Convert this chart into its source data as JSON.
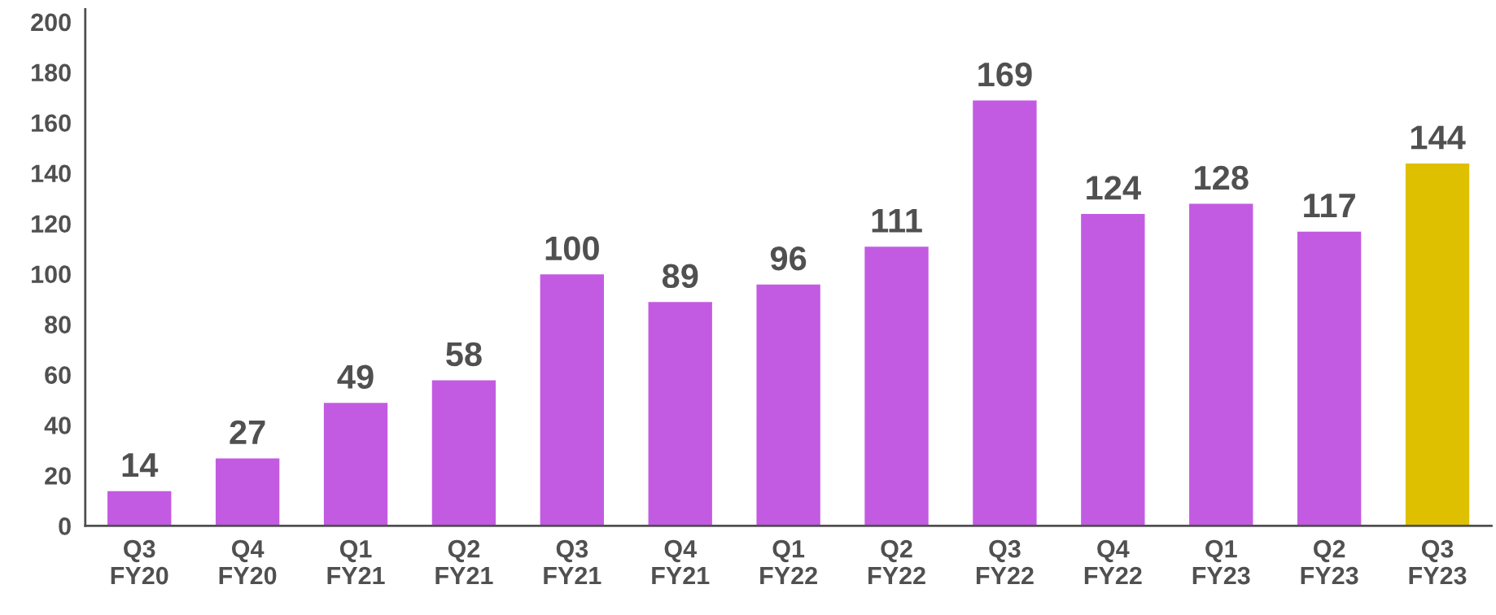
{
  "chart_data": {
    "type": "bar",
    "categories": [
      "Q3\nFY20",
      "Q4\nFY20",
      "Q1\nFY21",
      "Q2\nFY21",
      "Q3\nFY21",
      "Q4\nFY21",
      "Q1\nFY22",
      "Q2\nFY22",
      "Q3\nFY22",
      "Q4\nFY22",
      "Q1\nFY23",
      "Q2\nFY23",
      "Q3\nFY23"
    ],
    "values": [
      14,
      27,
      49,
      58,
      100,
      89,
      96,
      111,
      169,
      124,
      128,
      117,
      144
    ],
    "colors": [
      "#c35be2",
      "#c35be2",
      "#c35be2",
      "#c35be2",
      "#c35be2",
      "#c35be2",
      "#c35be2",
      "#c35be2",
      "#c35be2",
      "#c35be2",
      "#c35be2",
      "#c35be2",
      "#dfc000"
    ],
    "ylim": [
      0,
      205
    ],
    "yticks": [
      0,
      20,
      40,
      60,
      80,
      100,
      120,
      140,
      160,
      180,
      200
    ],
    "data_labels": true,
    "grid": false,
    "legend": false
  }
}
